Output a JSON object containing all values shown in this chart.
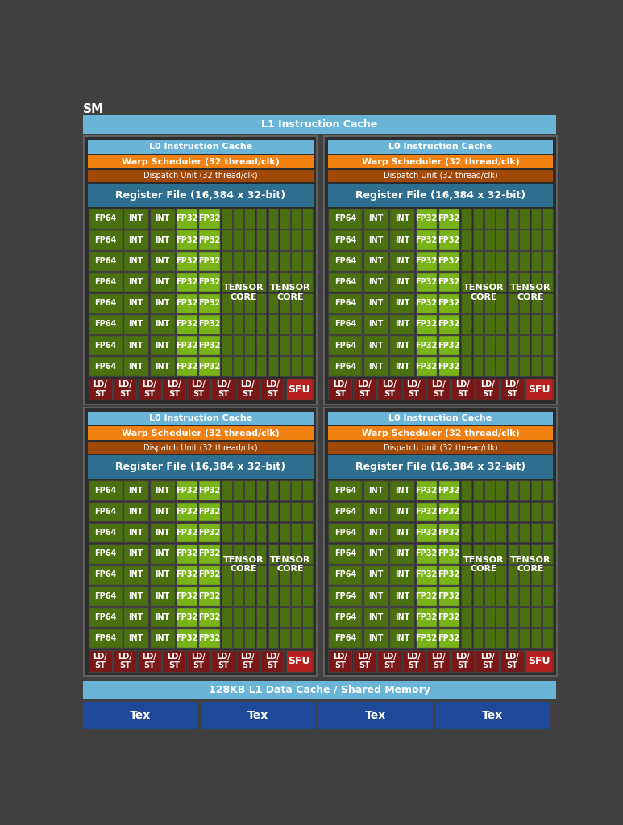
{
  "title": "SM",
  "bg_color": "#404040",
  "light_blue": "#6ab4d8",
  "teal_blue": "#2e6e8e",
  "orange": "#f08010",
  "dark_orange": "#a04808",
  "dark_green": "#4a7010",
  "bright_green": "#78b418",
  "dark_red": "#7a1818",
  "bright_red": "#b82020",
  "dark_blue": "#1e4898",
  "white": "#ffffff",
  "border_color": "#606060",
  "l1_cache_label": "L1 Instruction Cache",
  "l0_cache_label": "L0 Instruction Cache",
  "warp_label": "Warp Scheduler (32 thread/clk)",
  "dispatch_label": "Dispatch Unit (32 thread/clk)",
  "reg_file_label": "Register File (16,384 x 32-bit)",
  "tensor_label": "TENSOR\nCORE",
  "sfu_label": "SFU",
  "ld_st_label": "LD/\nST",
  "fp64_label": "FP64",
  "int_label": "INT",
  "fp32_label": "FP32",
  "l1_data_label": "128KB L1 Data Cache / Shared Memory",
  "tex_label": "Tex"
}
